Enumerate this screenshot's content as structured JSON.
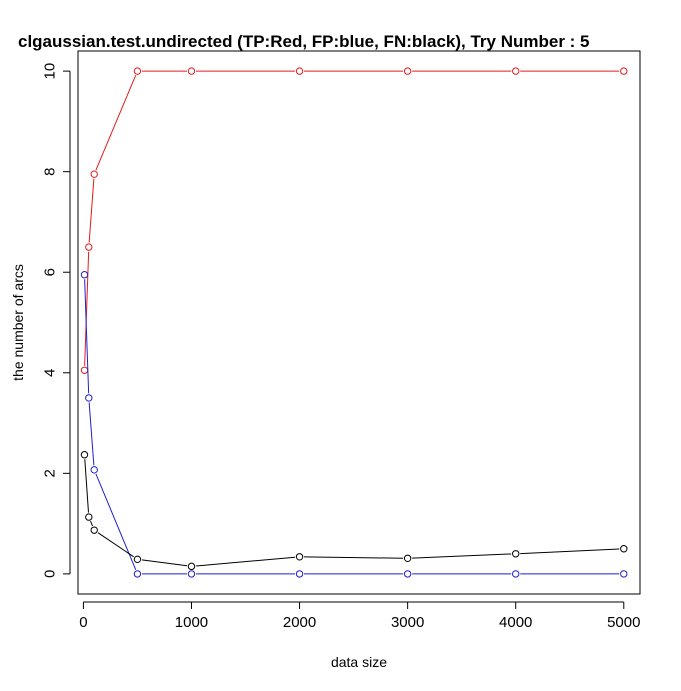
{
  "chart_data": {
    "type": "line",
    "title": "clgaussian.test.undirected  (TP:Red, FP:blue, FN:black),  Try Number :  5",
    "xlabel": "data size",
    "ylabel": "the number of arcs",
    "xlim": [
      -50,
      5150
    ],
    "ylim": [
      -0.4,
      10.4
    ],
    "xticks": [
      0,
      1000,
      2000,
      3000,
      4000,
      5000
    ],
    "xtick_labels": [
      "0",
      "1000",
      "2000",
      "3000",
      "4000",
      "5000"
    ],
    "yticks": [
      0,
      2,
      4,
      6,
      8,
      10
    ],
    "ytick_labels": [
      "0",
      "2",
      "4",
      "6",
      "8",
      "10"
    ],
    "grid": false,
    "x": [
      10,
      50,
      100,
      500,
      1000,
      2000,
      3000,
      4000,
      5000
    ],
    "series": [
      {
        "key": "TP",
        "color": "#e41a1c",
        "values": [
          4.05,
          6.5,
          7.95,
          10,
          10,
          10,
          10,
          10,
          10
        ]
      },
      {
        "key": "FP",
        "color": "#1f1fd0",
        "values": [
          5.95,
          3.5,
          2.07,
          0,
          0,
          0,
          0,
          0,
          0
        ]
      },
      {
        "key": "FN",
        "color": "#000000",
        "values": [
          2.37,
          1.13,
          0.87,
          0.29,
          0.15,
          0.34,
          0.31,
          0.4,
          0.5
        ]
      }
    ]
  }
}
